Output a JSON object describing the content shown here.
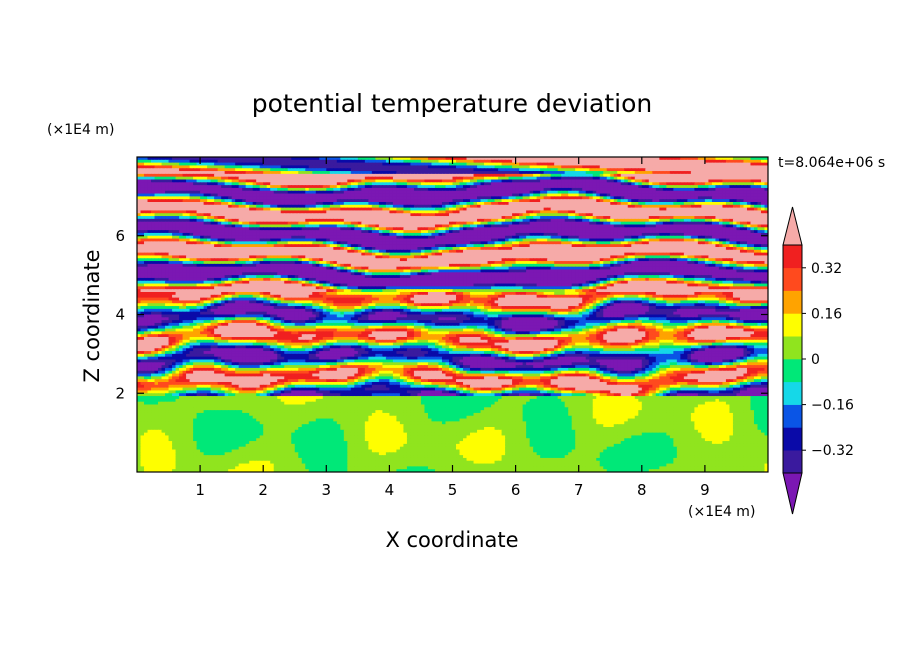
{
  "chart_data": {
    "type": "heatmap",
    "title": "potential temperature deviation",
    "xlabel": "X coordinate",
    "ylabel": "Z coordinate",
    "x_unit": "(×1E4 m)",
    "y_unit": "(×1E4 m)",
    "time_label": "t=8.064e+06 s",
    "xlim": [
      0,
      10
    ],
    "ylim": [
      0,
      8
    ],
    "x_ticks": [
      1,
      2,
      3,
      4,
      5,
      6,
      7,
      8,
      9
    ],
    "y_ticks": [
      2,
      4,
      6
    ],
    "x_tick_labels": [
      "1",
      "2",
      "3",
      "4",
      "5",
      "6",
      "7",
      "8",
      "9"
    ],
    "y_tick_labels": [
      "2",
      "4",
      "6"
    ],
    "colorbar": {
      "extend": "both",
      "levels": [
        -0.4,
        -0.32,
        -0.24,
        -0.16,
        -0.08,
        0,
        0.08,
        0.16,
        0.24,
        0.32,
        0.4
      ],
      "labels": [
        {
          "value": 0.32,
          "text": "0.32"
        },
        {
          "value": 0.16,
          "text": "0.16"
        },
        {
          "value": 0,
          "text": "0"
        },
        {
          "value": -0.16,
          "text": "−0.16"
        },
        {
          "value": -0.32,
          "text": "−0.32"
        }
      ],
      "colors": [
        "#7b17b3",
        "#3a1a9e",
        "#0a0aa8",
        "#0a55e6",
        "#15d8e8",
        "#00e878",
        "#90e41e",
        "#fefe00",
        "#ffa300",
        "#ff4a1e",
        "#f02020",
        "#f6aaa8"
      ]
    },
    "field_summary": {
      "lower_layer_z": [
        0,
        2
      ],
      "lower_layer_colors": [
        "#00e878",
        "#90e41e"
      ],
      "upper_layer_z": [
        2,
        8
      ],
      "upper_layer": "alternating horizontal bands of strongly negative (purple) and strongly positive (pink) deviation, mixed layers between z=2 and z=4.5"
    }
  }
}
